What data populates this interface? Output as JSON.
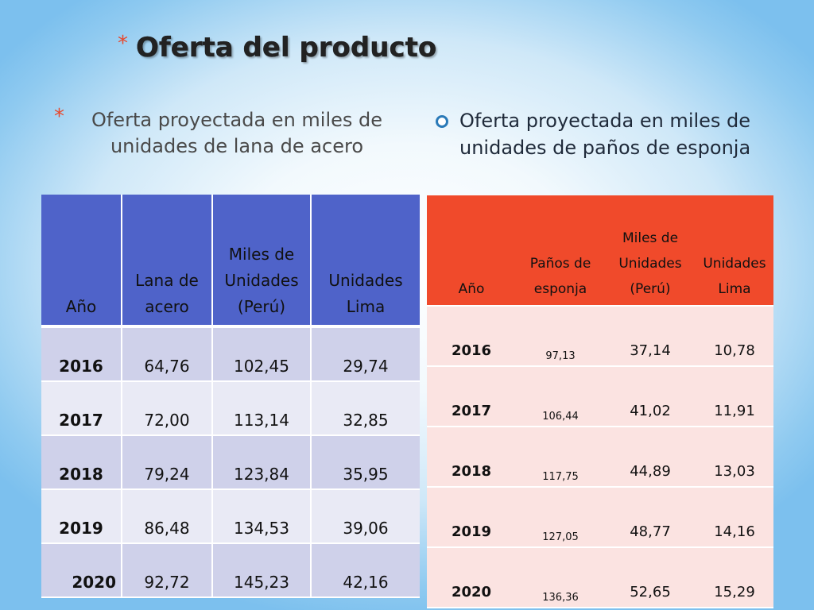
{
  "title": "Oferta del producto",
  "title_bullet": "*",
  "left_bullet": {
    "marker": "*",
    "text": "Oferta proyectada en miles de unidades de lana de acero"
  },
  "right_bullet": {
    "text": "Oferta proyectada en miles de unidades de paños de esponja"
  },
  "left_table": {
    "headers": [
      "Año",
      "Lana de acero",
      "Miles de Unidades (Perú)",
      "Unidades Lima"
    ],
    "rows": [
      [
        "2016",
        "64,76",
        "102,45",
        "29,74"
      ],
      [
        "2017",
        "72,00",
        "113,14",
        "32,85"
      ],
      [
        "2018",
        "79,24",
        "123,84",
        "35,95"
      ],
      [
        "2019",
        "86,48",
        "134,53",
        "39,06"
      ],
      [
        "2020",
        "92,72",
        "145,23",
        "42,16"
      ]
    ]
  },
  "right_table": {
    "headers": [
      "Año",
      "Paños de esponja",
      "Miles de Unidades (Perú)",
      "Unidades Lima"
    ],
    "rows": [
      [
        "2016",
        "97,13",
        "37,14",
        "10,78"
      ],
      [
        "2017",
        "106,44",
        "41,02",
        "11,91"
      ],
      [
        "2018",
        "117,75",
        "44,89",
        "13,03"
      ],
      [
        "2019",
        "127,05",
        "48,77",
        "14,16"
      ],
      [
        "2020",
        "136,36",
        "52,65",
        "15,29"
      ]
    ]
  },
  "colors": {
    "accent_star": "#e8482c",
    "left_header": "#4f63c9",
    "right_header": "#f04a2b",
    "bullet_ring": "#2a7ab8"
  }
}
